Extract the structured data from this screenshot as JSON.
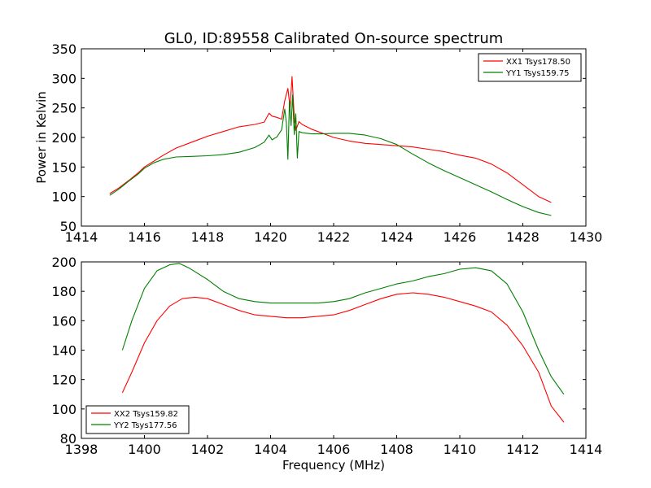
{
  "figure": {
    "title": "GL0, ID:89558 Calibrated On-source spectrum"
  },
  "colors": {
    "xx": "#ff0000",
    "yy": "#008000"
  },
  "chart_data": [
    {
      "type": "line",
      "title": "GL0, ID:89558 Calibrated On-source spectrum",
      "xlabel": "",
      "ylabel": "Power in Kelvin",
      "xlim": [
        1414,
        1430
      ],
      "ylim": [
        50,
        350
      ],
      "xticks": [
        1414,
        1416,
        1418,
        1420,
        1422,
        1424,
        1426,
        1428,
        1430
      ],
      "yticks": [
        50,
        100,
        150,
        200,
        250,
        300,
        350
      ],
      "legend_position": "top-right",
      "grid": false,
      "series": [
        {
          "name": "XX1 Tsys178.50",
          "color": "#ff0000",
          "x": [
            1414.9,
            1415.2,
            1415.5,
            1415.8,
            1416.0,
            1416.3,
            1416.6,
            1417.0,
            1417.5,
            1418.0,
            1418.5,
            1419.0,
            1419.5,
            1419.8,
            1419.95,
            1420.05,
            1420.2,
            1420.35,
            1420.45,
            1420.55,
            1420.62,
            1420.68,
            1420.72,
            1420.76,
            1420.8,
            1420.9,
            1421.0,
            1421.3,
            1421.6,
            1422.0,
            1422.5,
            1423.0,
            1423.5,
            1424.0,
            1424.5,
            1425.0,
            1425.5,
            1426.0,
            1426.5,
            1427.0,
            1427.5,
            1428.0,
            1428.5,
            1428.9
          ],
          "y": [
            105,
            115,
            127,
            140,
            150,
            160,
            170,
            182,
            192,
            202,
            210,
            218,
            222,
            226,
            241,
            236,
            234,
            231,
            262,
            283,
            250,
            303,
            265,
            228,
            212,
            227,
            222,
            214,
            208,
            200,
            194,
            190,
            188,
            186,
            184,
            180,
            176,
            170,
            165,
            155,
            140,
            120,
            100,
            90
          ]
        },
        {
          "name": "YY1 Tsys159.75",
          "color": "#008000",
          "x": [
            1414.9,
            1415.2,
            1415.5,
            1415.8,
            1416.0,
            1416.3,
            1416.6,
            1417.0,
            1417.5,
            1418.0,
            1418.5,
            1419.0,
            1419.5,
            1419.8,
            1419.95,
            1420.05,
            1420.2,
            1420.35,
            1420.45,
            1420.5,
            1420.55,
            1420.6,
            1420.65,
            1420.7,
            1420.75,
            1420.8,
            1420.85,
            1420.9,
            1421.0,
            1421.3,
            1421.6,
            1422.0,
            1422.5,
            1423.0,
            1423.5,
            1424.0,
            1424.5,
            1425.0,
            1425.5,
            1426.0,
            1426.5,
            1427.0,
            1427.5,
            1428.0,
            1428.5,
            1428.9
          ],
          "y": [
            102,
            113,
            126,
            138,
            148,
            157,
            163,
            167,
            168,
            169,
            171,
            175,
            183,
            192,
            204,
            196,
            201,
            213,
            248,
            225,
            163,
            262,
            220,
            272,
            205,
            240,
            165,
            210,
            208,
            206,
            206,
            207,
            207,
            204,
            198,
            188,
            172,
            157,
            144,
            132,
            120,
            108,
            95,
            83,
            73,
            68
          ]
        }
      ]
    },
    {
      "type": "line",
      "title": "",
      "xlabel": "Frequency (MHz)",
      "ylabel": "",
      "xlim": [
        1398,
        1414
      ],
      "ylim": [
        80,
        200
      ],
      "xticks": [
        1398,
        1400,
        1402,
        1404,
        1406,
        1408,
        1410,
        1412,
        1414
      ],
      "yticks": [
        80,
        100,
        120,
        140,
        160,
        180,
        200
      ],
      "legend_position": "bottom-left",
      "grid": false,
      "series": [
        {
          "name": "XX2 Tsys159.82",
          "color": "#ff0000",
          "x": [
            1399.3,
            1399.6,
            1400.0,
            1400.4,
            1400.8,
            1401.2,
            1401.6,
            1402.0,
            1402.5,
            1403.0,
            1403.5,
            1404.0,
            1404.5,
            1405.0,
            1405.5,
            1406.0,
            1406.5,
            1407.0,
            1407.5,
            1408.0,
            1408.5,
            1409.0,
            1409.5,
            1410.0,
            1410.5,
            1411.0,
            1411.5,
            1412.0,
            1412.5,
            1412.9,
            1413.3
          ],
          "y": [
            111,
            125,
            145,
            160,
            170,
            175,
            176,
            175,
            171,
            167,
            164,
            163,
            162,
            162,
            163,
            164,
            167,
            171,
            175,
            178,
            179,
            178,
            176,
            173,
            170,
            166,
            157,
            143,
            125,
            102,
            91
          ]
        },
        {
          "name": "YY2 Tsys177.56",
          "color": "#008000",
          "x": [
            1399.3,
            1399.6,
            1400.0,
            1400.4,
            1400.8,
            1401.1,
            1401.4,
            1402.0,
            1402.5,
            1403.0,
            1403.5,
            1404.0,
            1404.5,
            1405.0,
            1405.5,
            1406.0,
            1406.5,
            1407.0,
            1407.5,
            1408.0,
            1408.5,
            1409.0,
            1409.5,
            1410.0,
            1410.5,
            1411.0,
            1411.5,
            1412.0,
            1412.5,
            1412.9,
            1413.3
          ],
          "y": [
            140,
            160,
            182,
            194,
            198,
            199,
            196,
            188,
            180,
            175,
            173,
            172,
            172,
            172,
            172,
            173,
            175,
            179,
            182,
            185,
            187,
            190,
            192,
            195,
            196,
            194,
            185,
            166,
            140,
            122,
            110
          ]
        }
      ]
    }
  ]
}
